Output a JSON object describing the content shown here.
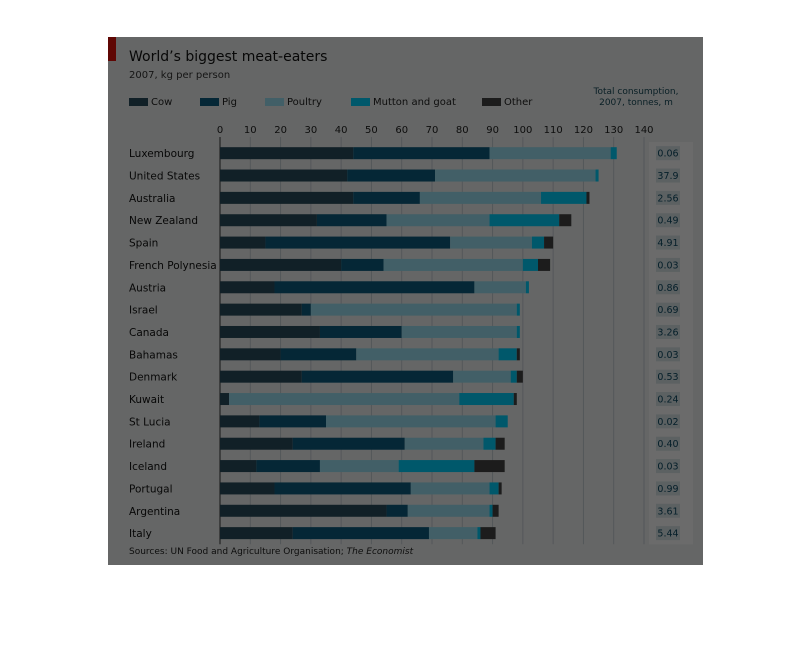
{
  "chart_data": {
    "type": "bar",
    "stacked": true,
    "orientation": "horizontal",
    "title": "World’s biggest meat-eaters",
    "subtitle": "2007, kg per person",
    "xlim": [
      0,
      140
    ],
    "xticks": [
      0,
      10,
      20,
      30,
      40,
      50,
      60,
      70,
      80,
      90,
      100,
      110,
      120,
      130,
      140
    ],
    "grid": true,
    "legend_position": "top",
    "categories": [
      "Luxembourg",
      "United States",
      "Australia",
      "New Zealand",
      "Spain",
      "French Polynesia",
      "Austria",
      "Israel",
      "Canada",
      "Bahamas",
      "Denmark",
      "Kuwait",
      "St Lucia",
      "Ireland",
      "Iceland",
      "Portugal",
      "Argentina",
      "Italy"
    ],
    "series": [
      {
        "name": "Cow",
        "color": "#2a4d5e",
        "values": [
          44,
          42,
          44,
          32,
          15,
          40,
          18,
          27,
          33,
          20,
          27,
          3,
          13,
          24,
          12,
          18,
          55,
          24
        ]
      },
      {
        "name": "Pig",
        "color": "#0d5d80",
        "values": [
          45,
          29,
          22,
          23,
          61,
          14,
          66,
          3,
          27,
          25,
          50,
          0,
          22,
          37,
          21,
          45,
          7,
          45
        ]
      },
      {
        "name": "Poultry",
        "color": "#9ee3f5",
        "values": [
          40,
          53,
          40,
          34,
          27,
          46,
          17,
          68,
          38,
          47,
          19,
          76,
          56,
          26,
          26,
          26,
          27,
          16
        ]
      },
      {
        "name": "Mutton and goat",
        "color": "#00d2ff",
        "values": [
          2,
          1,
          15,
          23,
          4,
          5,
          1,
          1,
          1,
          6,
          2,
          18,
          4,
          4,
          25,
          3,
          1,
          1
        ]
      },
      {
        "name": "Other",
        "color": "#444444",
        "values": [
          0,
          0,
          1,
          4,
          3,
          4,
          0,
          0,
          0,
          1,
          2,
          1,
          0,
          3,
          10,
          1,
          2,
          5
        ]
      }
    ],
    "total_consumption": {
      "header": "Total consumption, 2007, tonnes, m",
      "values": [
        "0.06",
        "37.9",
        "2.56",
        "0.49",
        "4.91",
        "0.03",
        "0.86",
        "0.69",
        "3.26",
        "0.03",
        "0.53",
        "0.24",
        "0.02",
        "0.40",
        "0.03",
        "0.99",
        "3.61",
        "5.44"
      ]
    },
    "source": "Sources: UN Food and Agriculture Organisation; ",
    "source_italic": "The Economist"
  }
}
